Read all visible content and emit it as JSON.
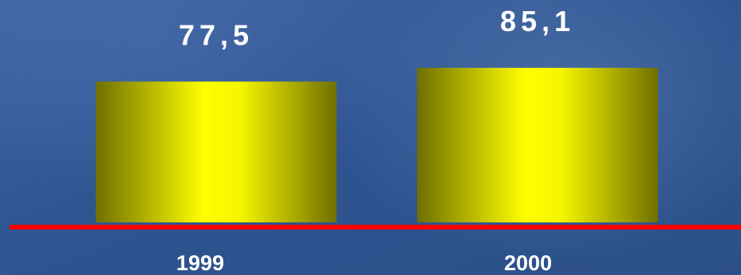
{
  "chart_data": {
    "type": "bar",
    "categories": [
      "1999",
      "2000"
    ],
    "values": [
      77.5,
      85.1
    ],
    "value_labels": [
      "77,5",
      "85,1"
    ],
    "title": "",
    "xlabel": "",
    "ylabel": "",
    "ylim": [
      0,
      100
    ],
    "grid": false,
    "colors": {
      "bar": "#ffff00",
      "bar_dark": "#7a7a00",
      "baseline": "#ff0000"
    }
  }
}
